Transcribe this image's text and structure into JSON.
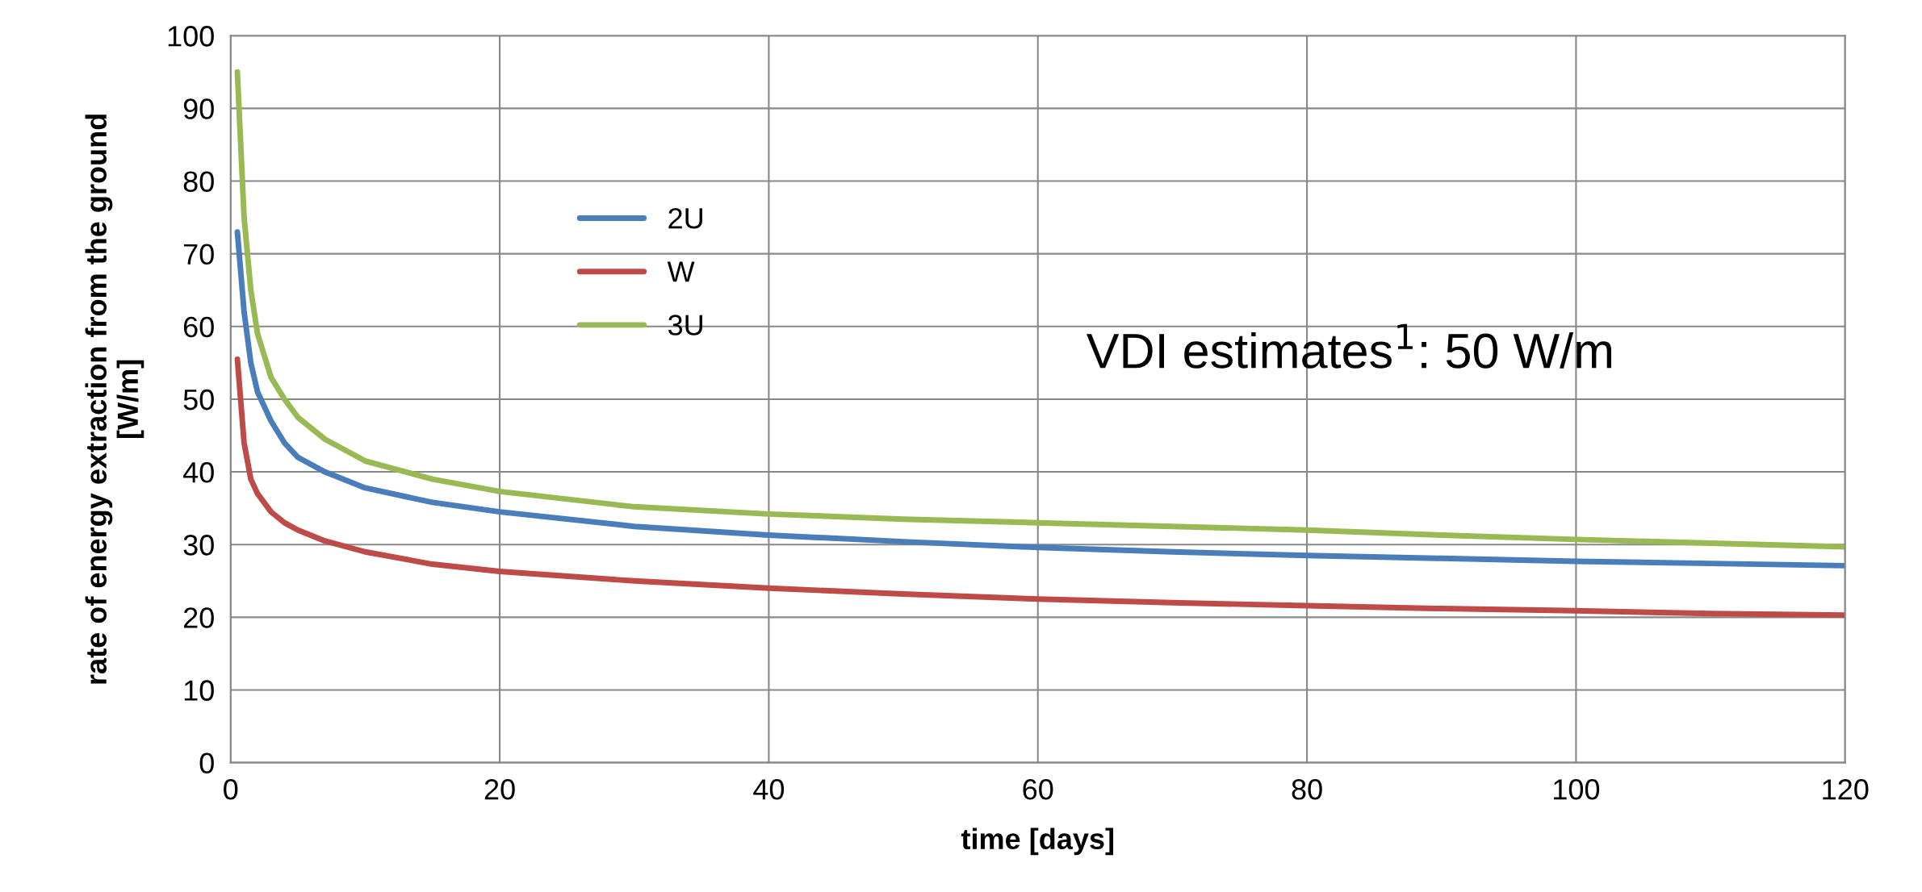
{
  "chart_data": {
    "type": "line",
    "xlabel": "time [days]",
    "ylabel": "rate of energy extraction from the ground\n[W/m]",
    "annotations": [
      "VDI estimates$^{1}$: 50 W/m"
    ],
    "xlim": [
      0,
      120
    ],
    "ylim": [
      0,
      100
    ],
    "xticks": [
      0,
      20,
      40,
      60,
      80,
      100,
      120
    ],
    "yticks": [
      0,
      10,
      20,
      30,
      40,
      50,
      60,
      70,
      80,
      90,
      100
    ],
    "grid": true,
    "legend": "top left",
    "marker": "none",
    "line_style": "solid",
    "x": [
      0.5,
      1,
      1.5,
      2,
      3,
      4,
      5,
      7,
      10,
      15,
      20,
      30,
      40,
      50,
      60,
      70,
      80,
      90,
      100,
      110,
      120
    ],
    "series": [
      {
        "name": "2U",
        "color": "#4a7ebb",
        "values": [
          73,
          62,
          55,
          51,
          47,
          44,
          42,
          40,
          37.8,
          35.8,
          34.5,
          32.5,
          31.3,
          30.4,
          29.6,
          29,
          28.5,
          28.1,
          27.7,
          27.4,
          27.1
        ]
      },
      {
        "name": "W",
        "color": "#be4b48",
        "values": [
          55.5,
          44,
          39,
          37,
          34.5,
          33,
          32,
          30.5,
          29,
          27.3,
          26.3,
          25,
          24,
          23.2,
          22.5,
          22,
          21.6,
          21.2,
          20.9,
          20.5,
          20.3
        ]
      },
      {
        "name": "3U",
        "color": "#98b954",
        "values": [
          95,
          75,
          65,
          59,
          53,
          50,
          47.5,
          44.5,
          41.5,
          39,
          37.3,
          35.2,
          34.2,
          33.5,
          33,
          32.5,
          32,
          31.3,
          30.7,
          30.2,
          29.7
        ]
      }
    ]
  }
}
